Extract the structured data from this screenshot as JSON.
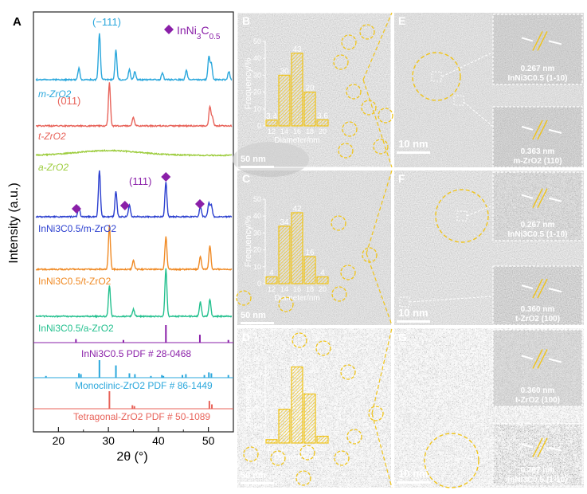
{
  "panel_labels": [
    "A",
    "B",
    "C",
    "D",
    "E",
    "F",
    "G"
  ],
  "colors": {
    "mZrO2": "#2aa7dc",
    "tZrO2": "#e8635a",
    "aZrO2": "#9ccc3c",
    "InNi3C05_m": "#2b3fcf",
    "InNi3C05_t": "#f08a24",
    "InNi3C05_a": "#23c08e",
    "InNi3C05_pdf": "#8a1fa8",
    "accent_yellow": "#f0c419"
  },
  "chart_data": [
    {
      "type": "line",
      "title": "",
      "xlabel": "2θ (°)",
      "ylabel": "Intensity (a.u.)",
      "xlim": [
        15,
        55
      ],
      "xticks": [
        20,
        30,
        40,
        50
      ],
      "legend": [
        {
          "name": "InNi3C0.5",
          "marker": "diamond"
        }
      ],
      "annotations": [
        "(−111)",
        "(011)",
        "(111)"
      ],
      "series": [
        {
          "name": "m-ZrO2",
          "label": "m-ZrO2",
          "peaks": [
            [
              24.1,
              0.25
            ],
            [
              28.2,
              1.0
            ],
            [
              31.5,
              0.65
            ],
            [
              34.2,
              0.22
            ],
            [
              35.3,
              0.18
            ],
            [
              40.8,
              0.15
            ],
            [
              45.6,
              0.2
            ],
            [
              50.1,
              0.5
            ],
            [
              50.6,
              0.35
            ],
            [
              54.1,
              0.18
            ]
          ]
        },
        {
          "name": "t-ZrO2",
          "label": "t-ZrO2",
          "peaks": [
            [
              30.2,
              1.0
            ],
            [
              35.0,
              0.2
            ],
            [
              50.3,
              0.45
            ],
            [
              50.8,
              0.2
            ]
          ]
        },
        {
          "name": "a-ZrO2",
          "label": "a-ZrO2",
          "peaks": []
        },
        {
          "name": "InNi3C0.5/m-ZrO2",
          "label": "InNi3C0.5/m-ZrO2",
          "peaks": [
            [
              24.1,
              0.2
            ],
            [
              28.2,
              1.0
            ],
            [
              31.5,
              0.55
            ],
            [
              34.2,
              0.25
            ],
            [
              41.5,
              0.75
            ],
            [
              48.4,
              0.22
            ],
            [
              50.1,
              0.3
            ],
            [
              50.6,
              0.25
            ]
          ]
        },
        {
          "name": "InNi3C0.5/t-ZrO2",
          "label": "InNi3C0.5/t-ZrO2",
          "peaks": [
            [
              30.2,
              1.0
            ],
            [
              35.0,
              0.2
            ],
            [
              41.5,
              0.75
            ],
            [
              48.4,
              0.3
            ],
            [
              50.3,
              0.55
            ]
          ]
        },
        {
          "name": "InNi3C0.5/a-ZrO2",
          "label": "InNi3C0.5/a-ZrO2",
          "peaks": [
            [
              30.2,
              0.65
            ],
            [
              35.0,
              0.15
            ],
            [
              41.5,
              1.0
            ],
            [
              48.4,
              0.3
            ],
            [
              50.3,
              0.35
            ]
          ]
        }
      ],
      "reference_patterns": [
        {
          "name": "InNi3C0.5 PDF # 28-0468",
          "sticks": [
            [
              23.5,
              0.2
            ],
            [
              33.0,
              0.15
            ],
            [
              41.5,
              1.0
            ],
            [
              48.3,
              0.45
            ],
            [
              54.0,
              0.15
            ]
          ]
        },
        {
          "name": "Monoclinic-ZrO2 PDF # 86-1449",
          "sticks": [
            [
              17.5,
              0.1
            ],
            [
              24.1,
              0.25
            ],
            [
              24.5,
              0.2
            ],
            [
              28.2,
              1.0
            ],
            [
              31.5,
              0.7
            ],
            [
              34.2,
              0.25
            ],
            [
              35.3,
              0.2
            ],
            [
              38.5,
              0.1
            ],
            [
              40.7,
              0.15
            ],
            [
              41.0,
              0.1
            ],
            [
              44.8,
              0.15
            ],
            [
              45.5,
              0.2
            ],
            [
              49.2,
              0.15
            ],
            [
              50.1,
              0.3
            ],
            [
              50.6,
              0.25
            ],
            [
              54.0,
              0.15
            ]
          ]
        },
        {
          "name": "Tetragonal-ZrO2 PDF # 50-1089",
          "sticks": [
            [
              30.2,
              1.0
            ],
            [
              34.8,
              0.2
            ],
            [
              35.2,
              0.15
            ],
            [
              50.2,
              0.45
            ],
            [
              50.7,
              0.25
            ]
          ]
        }
      ]
    },
    {
      "type": "bar",
      "panel": "B",
      "xlabel": "Diameter/nm",
      "ylabel": "Frequency/%",
      "categories": [
        "12",
        "14",
        "16",
        "18",
        "20"
      ],
      "values": [
        3.4,
        30,
        43,
        20,
        3.6
      ],
      "ylim": [
        0,
        50
      ],
      "yticks": [
        0,
        10,
        20,
        30,
        40,
        50
      ]
    },
    {
      "type": "bar",
      "panel": "C",
      "xlabel": "Diameter/nm",
      "ylabel": "Frequency/%",
      "categories": [
        "12",
        "14",
        "16",
        "18",
        "20"
      ],
      "values": [
        4,
        34,
        42,
        16,
        4
      ],
      "ylim": [
        0,
        50
      ],
      "yticks": [
        0,
        10,
        20,
        30,
        40,
        50
      ]
    },
    {
      "type": "bar",
      "panel": "D",
      "xlabel": "Diameter/nm",
      "ylabel": "Frequency/%",
      "categories": [
        "12",
        "14",
        "16",
        "18",
        "20"
      ],
      "values": [
        2,
        20,
        45,
        29,
        4
      ],
      "ylim": [
        0,
        50
      ],
      "yticks": [
        0,
        10,
        20,
        30,
        40,
        50
      ]
    }
  ],
  "scale_bars": {
    "B": "50 nm",
    "C": "50 nm",
    "D": "50 nm",
    "E": "10 nm",
    "F": "10 nm",
    "G": "10 nm"
  },
  "lattice": {
    "E1": {
      "d": "0.267 nm",
      "plane": "InNi3C0.5 (1-10)"
    },
    "E2": {
      "d": "0.363 nm",
      "plane": "m-ZrO2 (110)"
    },
    "F1": {
      "d": "0.267 nm",
      "plane": "InNi3C0.5 (1-10)"
    },
    "F2": {
      "d": "0.360 nm",
      "plane": "t-ZrO2 (100)"
    },
    "G1": {
      "d": "0.360 nm",
      "plane": "t-ZrO2 (100)"
    },
    "G2": {
      "d": "0.267 nm",
      "plane": "InNi3C0.5 (1-10)"
    }
  }
}
